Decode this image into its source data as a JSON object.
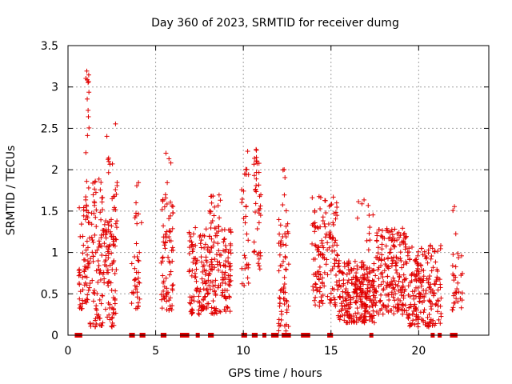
{
  "chart_data": {
    "type": "scatter",
    "title": "Day 360 of 2023, SRMTID for receiver dumg",
    "xlabel": "GPS time / hours",
    "ylabel": "SRMTID / TECUs",
    "xlim": [
      0,
      24
    ],
    "ylim": [
      0,
      3.5
    ],
    "x_ticks": [
      0,
      5,
      10,
      15,
      20
    ],
    "y_ticks": [
      0,
      0.5,
      1,
      1.5,
      2,
      2.5,
      3,
      3.5
    ],
    "x_tick_labels": [
      "0",
      "5",
      "10",
      "15",
      "20"
    ],
    "y_tick_labels": [
      "0",
      "0.5",
      "1",
      "1.5",
      "2",
      "2.5",
      "3",
      "3.5"
    ],
    "grid": true,
    "marker": "+",
    "color": "#e00000",
    "series": [
      {
        "name": "SRMTID",
        "clusters": [
          {
            "x": [
              0.6,
              1.2
            ],
            "ymin": 0.3,
            "ymax": 1.6,
            "n": 60
          },
          {
            "x": [
              1.0,
              1.2
            ],
            "ymin": 1.5,
            "ymax": 3.25,
            "n": 20
          },
          {
            "x": [
              1.2,
              2.0
            ],
            "ymin": 0.1,
            "ymax": 1.9,
            "n": 90
          },
          {
            "x": [
              2.0,
              2.8
            ],
            "ymin": 0.1,
            "ymax": 1.4,
            "n": 90
          },
          {
            "x": [
              2.2,
              2.9
            ],
            "ymin": 1.5,
            "ymax": 2.7,
            "n": 18
          },
          {
            "x": [
              3.6,
              4.1
            ],
            "ymin": 0.3,
            "ymax": 1.0,
            "n": 30
          },
          {
            "x": [
              3.8,
              4.2
            ],
            "ymin": 1.1,
            "ymax": 2.0,
            "n": 10
          },
          {
            "x": [
              5.3,
              6.0
            ],
            "ymin": 0.3,
            "ymax": 1.6,
            "n": 70
          },
          {
            "x": [
              5.4,
              5.9
            ],
            "ymin": 1.6,
            "ymax": 2.25,
            "n": 10
          },
          {
            "x": [
              6.9,
              9.3
            ],
            "ymin": 0.25,
            "ymax": 1.3,
            "n": 240
          },
          {
            "x": [
              8.0,
              8.7
            ],
            "ymin": 1.2,
            "ymax": 1.7,
            "n": 20
          },
          {
            "x": [
              9.9,
              10.3
            ],
            "ymin": 0.6,
            "ymax": 2.3,
            "n": 30
          },
          {
            "x": [
              10.6,
              11.0
            ],
            "ymin": 0.8,
            "ymax": 2.25,
            "n": 40
          },
          {
            "x": [
              12.0,
              12.6
            ],
            "ymin": 0.05,
            "ymax": 1.4,
            "n": 60
          },
          {
            "x": [
              12.2,
              12.5
            ],
            "ymin": 1.5,
            "ymax": 2.05,
            "n": 6
          },
          {
            "x": [
              13.9,
              15.4
            ],
            "ymin": 0.35,
            "ymax": 1.7,
            "n": 140
          },
          {
            "x": [
              15.4,
              17.5
            ],
            "ymin": 0.15,
            "ymax": 0.9,
            "n": 260
          },
          {
            "x": [
              16.5,
              17.4
            ],
            "ymin": 1.0,
            "ymax": 1.65,
            "n": 12
          },
          {
            "x": [
              17.5,
              19.3
            ],
            "ymin": 0.25,
            "ymax": 1.3,
            "n": 200
          },
          {
            "x": [
              19.3,
              21.3
            ],
            "ymin": 0.1,
            "ymax": 1.1,
            "n": 200
          },
          {
            "x": [
              21.9,
              22.5
            ],
            "ymin": 0.3,
            "ymax": 1.0,
            "n": 30
          },
          {
            "x": [
              21.9,
              22.2
            ],
            "ymin": 1.2,
            "ymax": 1.75,
            "n": 3
          }
        ],
        "zero_markers": [
          0.5,
          0.6,
          0.7,
          3.6,
          3.7,
          4.2,
          4.3,
          5.4,
          5.5,
          6.5,
          6.6,
          6.8,
          7.4,
          8.1,
          8.2,
          10.0,
          10.1,
          10.6,
          10.7,
          11.2,
          11.7,
          11.8,
          11.9,
          12.3,
          12.4,
          12.6,
          13.4,
          13.6,
          13.7,
          14.9,
          15.0,
          17.3,
          20.8,
          21.2,
          21.9,
          22.0,
          22.1
        ]
      }
    ]
  }
}
